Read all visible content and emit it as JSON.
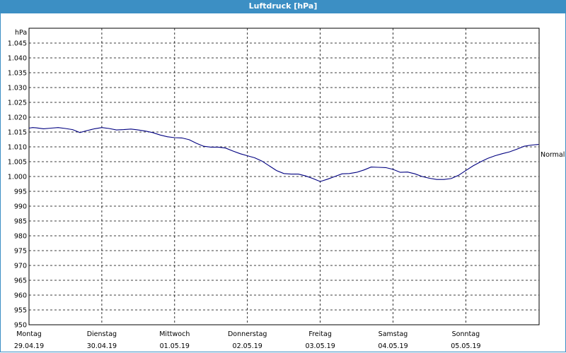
{
  "window": {
    "title": "Luftdruck [hPa]"
  },
  "colors": {
    "titlebar": "#3c8fc4",
    "series": "#000080",
    "grid": "#000000"
  },
  "chart_data": {
    "type": "line",
    "title": "Luftdruck [hPa]",
    "ylabel": "hPa",
    "ylim": [
      950,
      1050
    ],
    "yticks": [
      "1.045",
      "1.040",
      "1.035",
      "1.030",
      "1.025",
      "1.020",
      "1.015",
      "1.010",
      "1.005",
      "1.000",
      "995",
      "990",
      "985",
      "980",
      "975",
      "970",
      "965",
      "960",
      "955",
      "950"
    ],
    "ytick_values": [
      1045,
      1040,
      1035,
      1030,
      1025,
      1020,
      1015,
      1010,
      1005,
      1000,
      995,
      990,
      985,
      980,
      975,
      970,
      965,
      960,
      955,
      950
    ],
    "xlim": [
      0,
      7
    ],
    "xticks": [
      {
        "day": "Montag",
        "date": "29.04.19",
        "x": 0
      },
      {
        "day": "Dienstag",
        "date": "30.04.19",
        "x": 1
      },
      {
        "day": "Mittwoch",
        "date": "01.05.19",
        "x": 2
      },
      {
        "day": "Donnerstag",
        "date": "02.05.19",
        "x": 3
      },
      {
        "day": "Freitag",
        "date": "03.05.19",
        "x": 4
      },
      {
        "day": "Samstag",
        "date": "04.05.19",
        "x": 5
      },
      {
        "day": "Sonntag",
        "date": "05.05.19",
        "x": 6
      }
    ],
    "reference_label": "Normal",
    "reference_value": 1007.5,
    "grid": true,
    "series": [
      {
        "x": [
          0,
          0.05,
          0.1,
          0.2,
          0.3,
          0.4,
          0.5,
          0.6,
          0.7,
          0.8,
          0.9,
          1.0,
          1.1,
          1.2,
          1.3,
          1.4,
          1.5,
          1.6,
          1.7,
          1.8,
          1.9,
          2.0,
          2.1,
          2.2,
          2.3,
          2.4,
          2.5,
          2.6,
          2.7,
          2.8,
          2.9,
          3.0,
          3.1,
          3.2,
          3.3,
          3.4,
          3.5,
          3.6,
          3.7,
          3.8,
          3.9,
          4.0,
          4.1,
          4.2,
          4.3,
          4.4,
          4.5,
          4.6,
          4.7,
          4.8,
          4.9,
          5.0,
          5.1,
          5.2,
          5.3,
          5.4,
          5.5,
          5.6,
          5.7,
          5.8,
          5.9,
          6.0,
          6.1,
          6.2,
          6.3,
          6.4,
          6.5,
          6.6,
          6.7,
          6.8,
          6.9,
          7.0
        ],
        "values": [
          1016.3,
          1016.5,
          1016.4,
          1016.1,
          1016.3,
          1016.5,
          1016.2,
          1015.8,
          1014.8,
          1015.5,
          1016.1,
          1016.5,
          1016.2,
          1015.7,
          1015.8,
          1016.0,
          1015.7,
          1015.3,
          1014.8,
          1014.0,
          1013.4,
          1013.1,
          1013.0,
          1012.4,
          1011.2,
          1010.2,
          1009.9,
          1009.9,
          1009.6,
          1008.6,
          1007.7,
          1007.0,
          1006.3,
          1005.2,
          1003.6,
          1002.0,
          1001.0,
          1000.8,
          1000.8,
          1000.2,
          999.3,
          998.3,
          999.1,
          1000.0,
          1000.9,
          1001.0,
          1001.4,
          1002.2,
          1003.2,
          1003.1,
          1003.0,
          1002.4,
          1001.4,
          1001.5,
          1000.9,
          1000.0,
          999.4,
          999.0,
          999.0,
          999.3,
          1000.4,
          1002.0,
          1003.6,
          1004.9,
          1006.1,
          1007.0,
          1007.7,
          1008.3,
          1009.2,
          1010.2,
          1010.6,
          1010.8
        ]
      }
    ]
  }
}
